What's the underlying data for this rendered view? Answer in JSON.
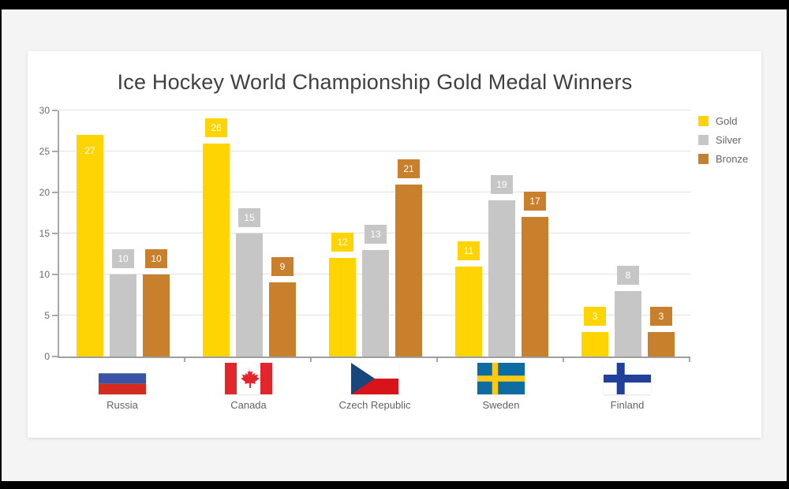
{
  "window": {
    "frame_color": "#000000",
    "page_background": "#f4f4f5",
    "card_background": "#ffffff"
  },
  "chart_data": {
    "type": "bar",
    "title": "Ice Hockey World Championship Gold Medal Winners",
    "categories": [
      "Russia",
      "Canada",
      "Czech Republic",
      "Sweden",
      "Finland"
    ],
    "category_flag_icons": [
      "flag-russia-icon",
      "flag-canada-icon",
      "flag-czech-republic-icon",
      "flag-sweden-icon",
      "flag-finland-icon"
    ],
    "series": [
      {
        "name": "Gold",
        "color": "#FFD400",
        "values": [
          27,
          26,
          12,
          11,
          3
        ]
      },
      {
        "name": "Silver",
        "color": "#C6C6C6",
        "values": [
          10,
          15,
          13,
          19,
          8
        ]
      },
      {
        "name": "Bronze",
        "color": "#C8802D",
        "values": [
          10,
          9,
          21,
          17,
          3
        ]
      }
    ],
    "data_labels": true,
    "data_label_text_color": "#ffffff",
    "xlabel": "",
    "ylabel": "",
    "ylim": [
      0,
      30
    ],
    "yticks": [
      0,
      5,
      10,
      15,
      20,
      25,
      30
    ],
    "grid": true,
    "legend_position": "top-right"
  }
}
